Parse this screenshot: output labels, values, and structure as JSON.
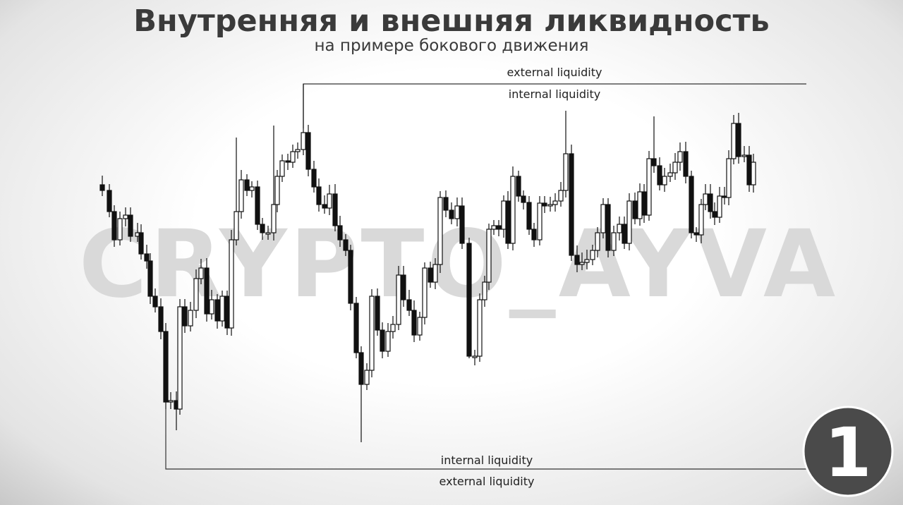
{
  "header": {
    "title": "Внутренняя и внешняя ликвидность",
    "subtitle": "на примере бокового движения"
  },
  "labels": {
    "top_external": "external liquidity",
    "top_internal": "internal liquidity",
    "bottom_internal": "internal liquidity",
    "bottom_external": "external liquidity"
  },
  "watermark": "CRYPTO_AYVA",
  "badge": "1"
}
